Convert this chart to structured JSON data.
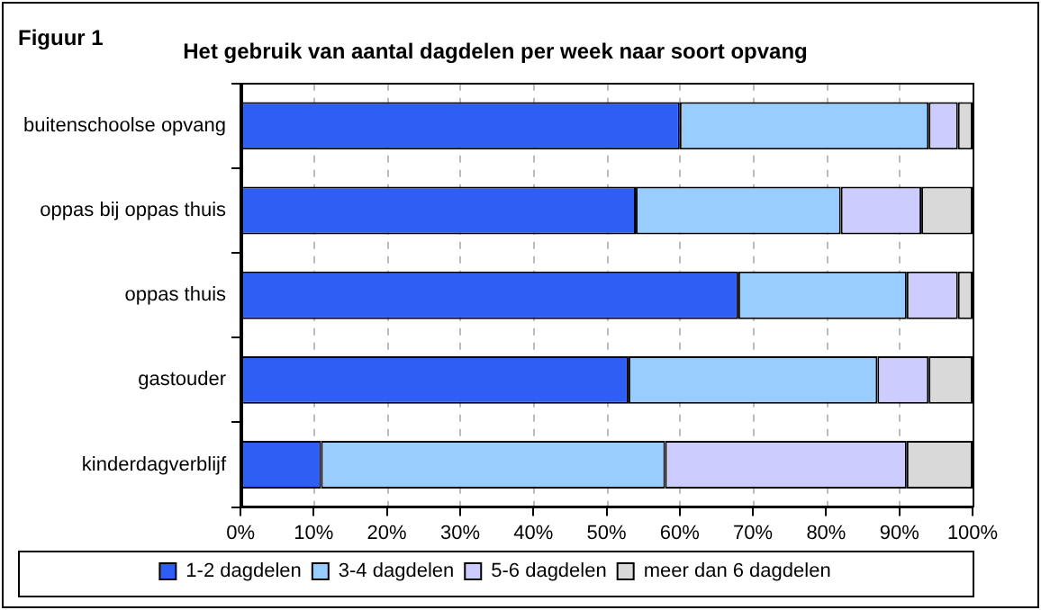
{
  "chart_data": {
    "type": "bar",
    "orientation": "horizontal",
    "stacked": true,
    "title": "Het gebruik van aantal dagdelen per week naar soort opvang",
    "annotations": [
      "Figuur 1"
    ],
    "categories": [
      "buitenschoolse opvang",
      "oppas bij oppas thuis",
      "oppas thuis",
      "gastouder",
      "kinderdagverblijf"
    ],
    "series": [
      {
        "name": "1-2 dagdelen",
        "color": "#2f5ef5",
        "values": [
          60,
          54,
          68,
          53,
          11
        ]
      },
      {
        "name": "3-4 dagdelen",
        "color": "#99ccff",
        "values": [
          34,
          28,
          23,
          34,
          47
        ]
      },
      {
        "name": "5-6 dagdelen",
        "color": "#ccccff",
        "values": [
          4,
          11,
          7,
          7,
          33
        ]
      },
      {
        "name": "meer dan 6 dagdelen",
        "color": "#d9d9d9",
        "values": [
          2,
          7,
          2,
          6,
          9
        ]
      }
    ],
    "xlim": [
      0,
      100
    ],
    "xticks": [
      {
        "value": 0,
        "label": "0%"
      },
      {
        "value": 10,
        "label": "10%"
      },
      {
        "value": 20,
        "label": "20%"
      },
      {
        "value": 30,
        "label": "30%"
      },
      {
        "value": 40,
        "label": "40%"
      },
      {
        "value": 50,
        "label": "50%"
      },
      {
        "value": 60,
        "label": "60%"
      },
      {
        "value": 70,
        "label": "70%"
      },
      {
        "value": 80,
        "label": "80%"
      },
      {
        "value": 90,
        "label": "90%"
      },
      {
        "value": 100,
        "label": "100%"
      }
    ],
    "grid": "x",
    "legend": "bottom"
  }
}
